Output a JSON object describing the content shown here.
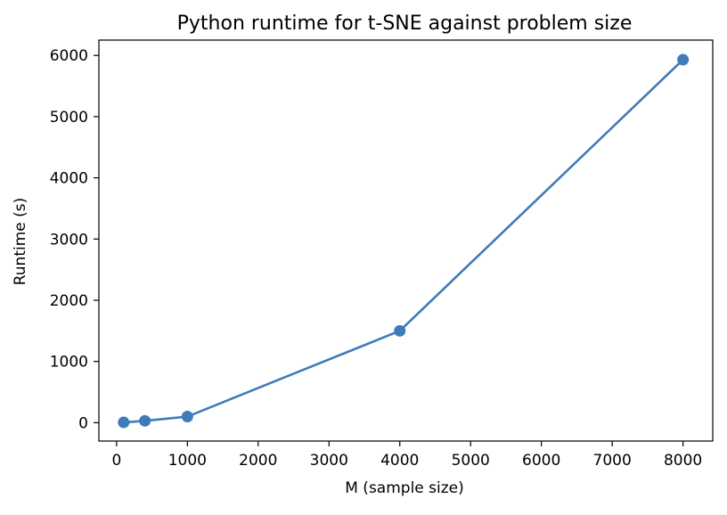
{
  "chart_data": {
    "type": "line",
    "title": "Python runtime for t-SNE against problem size",
    "xlabel": "M (sample size)",
    "ylabel": "Runtime (s)",
    "xlim": [
      -250,
      8420
    ],
    "ylim": [
      -300,
      6250
    ],
    "xticks": [
      0,
      1000,
      2000,
      3000,
      4000,
      5000,
      6000,
      7000,
      8000
    ],
    "yticks": [
      0,
      1000,
      2000,
      3000,
      4000,
      5000,
      6000
    ],
    "grid": false,
    "series": [
      {
        "color": "#3f7bb8",
        "marker": "circle",
        "x": [
          100,
          400,
          1000,
          4000,
          8000
        ],
        "y": [
          5,
          30,
          100,
          1500,
          5930
        ]
      }
    ]
  }
}
